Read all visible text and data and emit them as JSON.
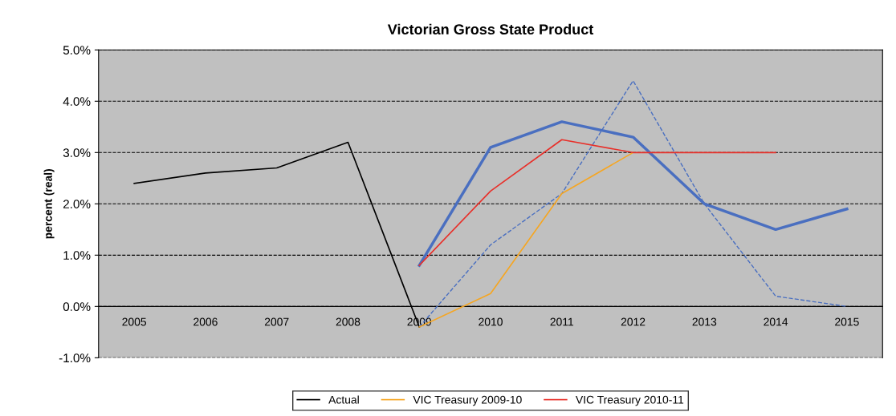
{
  "chart_data": {
    "type": "line",
    "title": "Victorian Gross State Product",
    "ylabel": "percent (real)",
    "categories": [
      "2005",
      "2006",
      "2007",
      "2008",
      "2009",
      "2010",
      "2011",
      "2012",
      "2013",
      "2014",
      "2015"
    ],
    "series": [
      {
        "name": "Actual",
        "color": "#000000",
        "values": [
          2.4,
          2.6,
          2.7,
          3.2,
          -0.4,
          null,
          null,
          null,
          null,
          null,
          null
        ]
      },
      {
        "color": "#4a6fc0",
        "line_style": "dashed",
        "values": [
          null,
          null,
          null,
          null,
          -0.4,
          1.2,
          2.2,
          4.4,
          2.0,
          0.2,
          0.0
        ]
      },
      {
        "color": "#4a6fc0",
        "values": [
          null,
          null,
          null,
          null,
          0.8,
          3.1,
          3.6,
          3.3,
          2.0,
          1.5,
          1.9
        ]
      },
      {
        "name": "VIC Treasury 2009-10",
        "color": "#f5a623",
        "values": [
          null,
          null,
          null,
          null,
          -0.4,
          0.25,
          2.2,
          3.0,
          null,
          null,
          null
        ]
      },
      {
        "name": "VIC Treasury 2010-11",
        "color": "#e8302a",
        "values": [
          null,
          null,
          null,
          null,
          0.8,
          2.25,
          3.25,
          3.0,
          3.0,
          3.0,
          null
        ]
      }
    ],
    "ylim": [
      -1,
      5
    ],
    "yticks": [
      {
        "value": -1,
        "label": "-1.0%"
      },
      {
        "value": 0,
        "label": "0.0%"
      },
      {
        "value": 1,
        "label": "1.0%"
      },
      {
        "value": 2,
        "label": "2.0%"
      },
      {
        "value": 3,
        "label": "3.0%"
      },
      {
        "value": 4,
        "label": "4.0%"
      },
      {
        "value": 5,
        "label": "5.0%"
      }
    ],
    "grid": "y",
    "legend": "bottom",
    "marker": "none"
  }
}
